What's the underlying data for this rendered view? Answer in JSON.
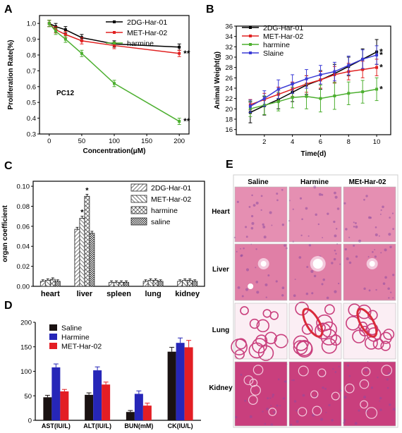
{
  "panel_labels": [
    "A",
    "B",
    "C",
    "D",
    "E"
  ],
  "chart_data": [
    {
      "panel": "A",
      "type": "line",
      "xlabel": "Concentration(μM)",
      "ylabel": "Proliferation Rate(%)",
      "annotation": "PC12",
      "x": [
        0,
        10,
        25,
        50,
        100,
        200
      ],
      "xlim": [
        -15,
        215
      ],
      "ylim": [
        0.3,
        1.05
      ],
      "xticks": [
        0,
        50,
        100,
        150,
        200
      ],
      "yticks": [
        0.3,
        0.4,
        0.5,
        0.6,
        0.7,
        0.8,
        0.9,
        1.0
      ],
      "legend_position": "top-right",
      "series": [
        {
          "name": "2DG-Har-01",
          "color": "#000000",
          "values": [
            1.0,
            0.98,
            0.96,
            0.91,
            0.87,
            0.85
          ],
          "errors": [
            0.02,
            0.02,
            0.02,
            0.02,
            0.02,
            0.02
          ],
          "sig": ""
        },
        {
          "name": "MET-Har-02",
          "color": "#e02020",
          "values": [
            1.0,
            0.96,
            0.93,
            0.89,
            0.86,
            0.81
          ],
          "errors": [
            0.02,
            0.02,
            0.02,
            0.02,
            0.02,
            0.02
          ],
          "sig": "**"
        },
        {
          "name": "harmine",
          "color": "#4caf2f",
          "values": [
            1.0,
            0.95,
            0.9,
            0.81,
            0.62,
            0.38
          ],
          "errors": [
            0.02,
            0.02,
            0.02,
            0.02,
            0.02,
            0.02
          ],
          "sig": "**"
        }
      ]
    },
    {
      "panel": "B",
      "type": "line",
      "xlabel": "Time(d)",
      "ylabel": "Animal Weight(g)",
      "x": [
        1,
        2,
        3,
        4,
        5,
        6,
        7,
        8,
        9,
        10
      ],
      "xlim": [
        0,
        11
      ],
      "ylim": [
        15,
        36
      ],
      "xticks": [
        2,
        4,
        6,
        8,
        10
      ],
      "yticks": [
        16,
        18,
        20,
        22,
        24,
        26,
        28,
        30,
        32,
        34,
        36
      ],
      "legend_position": "top-left",
      "series": [
        {
          "name": "2DG-Har-01",
          "color": "#000000",
          "values": [
            19.3,
            20.6,
            21.8,
            23.2,
            24.6,
            25.6,
            26.8,
            28.2,
            29.6,
            31.0
          ],
          "errors": [
            2.0,
            1.8,
            1.8,
            1.8,
            1.8,
            1.8,
            1.8,
            1.8,
            2.0,
            2.4
          ],
          "sig": "*"
        },
        {
          "name": "MET-Har-02",
          "color": "#e02020",
          "values": [
            20.8,
            21.8,
            22.8,
            23.8,
            24.8,
            25.6,
            26.6,
            27.2,
            27.6,
            28.0
          ],
          "errors": [
            1.0,
            1.2,
            1.4,
            1.4,
            1.6,
            1.6,
            1.6,
            1.6,
            1.6,
            1.6
          ],
          "sig": "*"
        },
        {
          "name": "harmine",
          "color": "#4caf2f",
          "values": [
            20.0,
            20.7,
            21.4,
            22.2,
            22.4,
            22.0,
            22.5,
            23.0,
            23.3,
            23.8
          ],
          "errors": [
            1.5,
            1.8,
            1.8,
            2.0,
            2.4,
            2.6,
            2.6,
            2.2,
            2.2,
            2.2
          ],
          "sig": "*"
        },
        {
          "name": "Slaine",
          "color": "#3b3bd6",
          "values": [
            20.5,
            22.0,
            23.8,
            24.8,
            25.8,
            26.6,
            27.2,
            28.4,
            29.6,
            30.4
          ],
          "errors": [
            1.2,
            1.5,
            1.8,
            1.8,
            1.8,
            1.8,
            1.8,
            1.8,
            1.8,
            1.8
          ],
          "sig": "*"
        }
      ]
    },
    {
      "panel": "C",
      "type": "bar",
      "ylabel": "organ coefficient",
      "categories": [
        "heart",
        "liver",
        "spleen",
        "lung",
        "kidney"
      ],
      "ylim": [
        0,
        0.105
      ],
      "yticks": [
        0.0,
        0.02,
        0.04,
        0.06,
        0.08,
        0.1
      ],
      "yticklabels": [
        "0.00",
        "0.02",
        "0.04",
        "0.06",
        "0.08",
        "0.10"
      ],
      "legend_position": "top-right",
      "series": [
        {
          "name": "2DG-Har-01",
          "pattern": "diag",
          "values": [
            0.005,
            0.057,
            0.004,
            0.005,
            0.005
          ],
          "errors": [
            0.0015,
            0.002,
            0.0015,
            0.0015,
            0.0015
          ]
        },
        {
          "name": "MET-Har-02",
          "pattern": "back",
          "values": [
            0.006,
            0.068,
            0.004,
            0.006,
            0.006
          ],
          "errors": [
            0.0015,
            0.002,
            0.0015,
            0.0015,
            0.0015
          ]
        },
        {
          "name": "harmine",
          "pattern": "cross",
          "values": [
            0.007,
            0.09,
            0.004,
            0.006,
            0.006
          ],
          "errors": [
            0.0015,
            0.002,
            0.0015,
            0.0015,
            0.0015
          ]
        },
        {
          "name": "saline",
          "pattern": "dots",
          "values": [
            0.005,
            0.053,
            0.004,
            0.005,
            0.005
          ],
          "errors": [
            0.0015,
            0.002,
            0.0015,
            0.0015,
            0.0015
          ]
        }
      ],
      "annotations": [
        {
          "category": "liver",
          "series": "MET-Har-02",
          "text": "*"
        },
        {
          "category": "liver",
          "series": "harmine",
          "text": "*"
        }
      ]
    },
    {
      "panel": "D",
      "type": "bar",
      "categories": [
        "AST(IU/L)",
        "ALT(IU/L)",
        "BUN(mM)",
        "CK(IU/L)"
      ],
      "ylim": [
        0,
        200
      ],
      "yticks": [
        0,
        50,
        100,
        150,
        200
      ],
      "legend_position": "top-left",
      "series": [
        {
          "name": "Saline",
          "color": "#1a1212",
          "values": [
            47,
            52,
            17,
            140
          ],
          "errors": [
            4,
            4,
            3,
            9
          ]
        },
        {
          "name": "Harmine",
          "color": "#2626b8",
          "values": [
            108,
            102,
            54,
            158
          ],
          "errors": [
            7,
            7,
            6,
            10
          ]
        },
        {
          "name": "MET-Har-02",
          "color": "#e31e24",
          "values": [
            59,
            73,
            30,
            149
          ],
          "errors": [
            4,
            5,
            5,
            14
          ]
        }
      ]
    }
  ],
  "histology": {
    "columns": [
      "Saline",
      "Harmine",
      "MEt-Har-02"
    ],
    "rows": [
      "Heart",
      "Liver",
      "Lung",
      "Kidney"
    ]
  },
  "colors": {
    "tissue_pink": "#e07fa6",
    "tissue_light": "#f3c9dc",
    "tissue_deep": "#c93f7d",
    "tissue_purple": "#8e4aa0",
    "blood_red": "#d92a3a"
  }
}
